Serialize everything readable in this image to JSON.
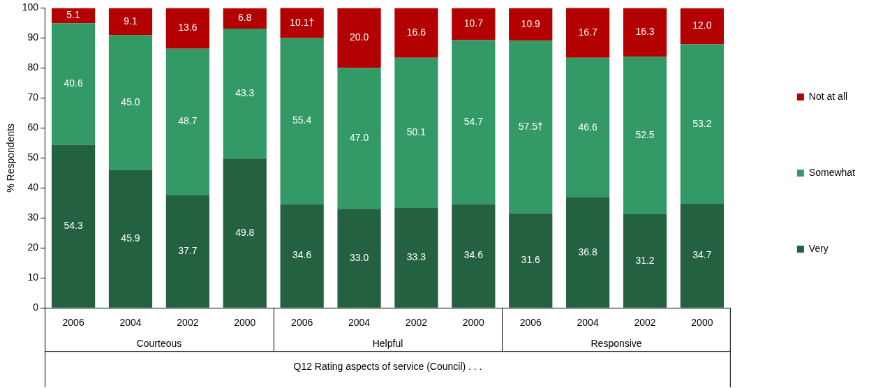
{
  "chart_data": {
    "type": "bar",
    "stacked": true,
    "ylabel": "% Respondents",
    "xlabel": "Q12 Rating aspects of service (Council) . . .",
    "categories": [
      "2006",
      "2004",
      "2002",
      "2000",
      "2006",
      "2004",
      "2002",
      "2000",
      "2006",
      "2004",
      "2002",
      "2000"
    ],
    "annotations": [
      "Courteous",
      "Helpful",
      "Responsive"
    ],
    "ylim": [
      0,
      100
    ],
    "yticks": [
      0,
      10,
      20,
      30,
      40,
      50,
      60,
      70,
      80,
      90,
      100
    ],
    "grid": false,
    "legend": "right",
    "series": [
      {
        "name": "Very",
        "color": "#236140",
        "values": [
          54.3,
          45.9,
          37.7,
          49.8,
          34.6,
          33.0,
          33.3,
          34.6,
          31.6,
          36.8,
          31.2,
          34.7
        ],
        "value_labels": [
          "54.3",
          "45.9",
          "37.7",
          "49.8",
          "34.6",
          "33.0",
          "33.3",
          "34.6",
          "31.6",
          "36.8",
          "31.2",
          "34.7"
        ]
      },
      {
        "name": "Somewhat",
        "color": "#339966",
        "values": [
          40.6,
          45.0,
          48.7,
          43.3,
          55.4,
          47.0,
          50.1,
          54.7,
          57.5,
          46.6,
          52.5,
          53.2
        ],
        "value_labels": [
          "40.6",
          "45.0",
          "48.7",
          "43.3",
          "55.4",
          "47.0",
          "50.1",
          "54.7",
          "57.5†",
          "46.6",
          "52.5",
          "53.2"
        ]
      },
      {
        "name": "Not at all",
        "color": "#b30000",
        "values": [
          5.1,
          9.1,
          13.6,
          6.8,
          10.1,
          20.0,
          16.6,
          10.7,
          10.9,
          16.7,
          16.3,
          12.0
        ],
        "value_labels": [
          "5.1",
          "9.1",
          "13.6",
          "6.8",
          "10.1†",
          "20.0",
          "16.6",
          "10.7",
          "10.9",
          "16.7",
          "16.3",
          "12.0"
        ]
      }
    ]
  }
}
